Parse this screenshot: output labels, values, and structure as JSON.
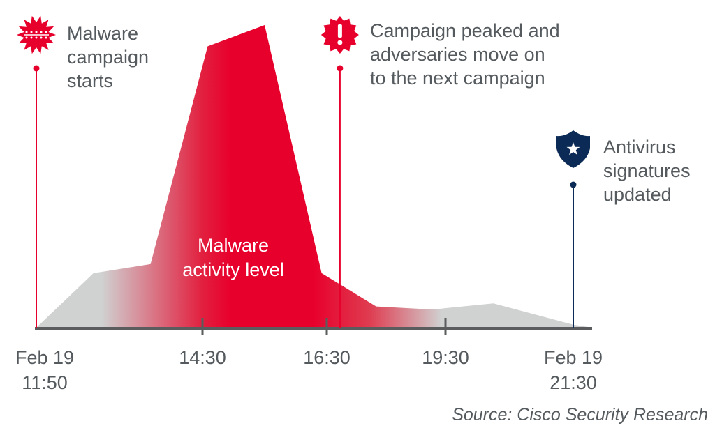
{
  "chart_data": {
    "type": "area",
    "title": "",
    "xlabel": "",
    "ylabel": "",
    "series": [
      {
        "name": "Malware activity level",
        "x": [
          "11:50",
          "12:45",
          "13:40",
          "14:35",
          "15:30",
          "16:25",
          "17:45",
          "19:10",
          "20:15",
          "21:30",
          "21:48"
        ],
        "values": [
          0,
          18,
          21,
          93,
          100,
          18,
          7,
          6,
          8,
          1,
          0
        ]
      }
    ],
    "ylim": [
      0,
      100
    ],
    "x_ticks": [
      {
        "time": "11:50",
        "line1": "Feb 19",
        "line2": "11:50"
      },
      {
        "time": "14:30",
        "line1": "14:30",
        "line2": ""
      },
      {
        "time": "16:30",
        "line1": "16:30",
        "line2": ""
      },
      {
        "time": "19:30",
        "line1": "19:30",
        "line2": ""
      },
      {
        "time": "21:30",
        "line1": "Feb 19",
        "line2": "21:30"
      }
    ],
    "area_label": [
      "Malware",
      "activity level"
    ],
    "annotations": [
      {
        "time": "11:50",
        "icon": "virus-icon",
        "color": "#e8002c",
        "lines": [
          "Malware",
          "campaign",
          "starts"
        ]
      },
      {
        "time": "16:50",
        "icon": "alert-badge-icon",
        "color": "#e8002c",
        "lines": [
          "Campaign peaked and",
          "adversaries move on",
          "to the next campaign"
        ]
      },
      {
        "time": "21:30",
        "icon": "shield-star-icon",
        "color": "#0b2a55",
        "lines": [
          "Antivirus",
          "signatures",
          "updated"
        ]
      }
    ],
    "grid": false,
    "source": "Source: Cisco Security Research",
    "colors": {
      "red": "#e8002c",
      "gray": "#d0d1d1",
      "navy": "#0b2a55",
      "axis": "#5a5c5e"
    }
  }
}
